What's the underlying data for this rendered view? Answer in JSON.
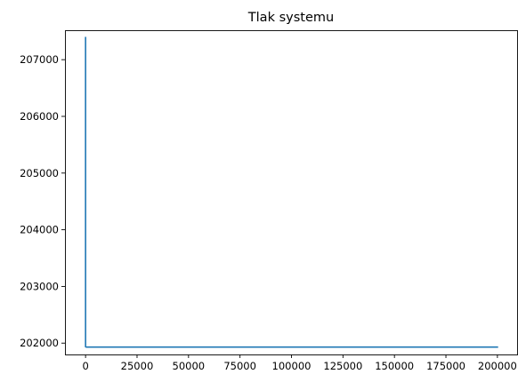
{
  "chart_data": {
    "type": "line",
    "title": "Tlak systemu",
    "xlabel": "",
    "ylabel": "",
    "xlim": [
      -10000,
      210000
    ],
    "ylim": [
      201800,
      207520
    ],
    "xticks": [
      0,
      25000,
      50000,
      75000,
      100000,
      125000,
      150000,
      175000,
      200000
    ],
    "xtick_labels": [
      "0",
      "25000",
      "50000",
      "75000",
      "100000",
      "125000",
      "150000",
      "175000",
      "200000"
    ],
    "yticks": [
      202000,
      203000,
      204000,
      205000,
      206000,
      207000
    ],
    "ytick_labels": [
      "202000",
      "203000",
      "204000",
      "205000",
      "206000",
      "207000"
    ],
    "grid": false,
    "series": [
      {
        "color": "#1f77b4",
        "x": [
          0,
          0,
          300,
          200000
        ],
        "y": [
          207390,
          201935,
          201930,
          201930
        ]
      }
    ]
  }
}
